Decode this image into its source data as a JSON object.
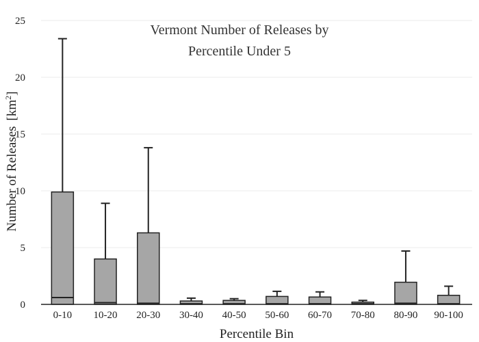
{
  "chart_data": {
    "type": "box",
    "title_lines": [
      "Vermont Number of Releases by",
      "Percentile Under 5"
    ],
    "xlabel": "Percentile Bin",
    "ylabel": "Number of Releases",
    "ylabel_unit": "[km",
    "ylabel_unit_sup": "2",
    "ylabel_unit_close": "]",
    "ylim": [
      0,
      25
    ],
    "yticks": [
      0,
      5,
      10,
      15,
      20,
      25
    ],
    "grid": true,
    "box_color": "#a6a6a6",
    "line_color": "#222222",
    "categories": [
      "0-10",
      "10-20",
      "20-30",
      "30-40",
      "40-50",
      "50-60",
      "60-70",
      "70-80",
      "80-90",
      "90-100"
    ],
    "boxes": [
      {
        "category": "0-10",
        "min": 0,
        "q1": 0,
        "median": 0.6,
        "q3": 9.9,
        "max": 23.4
      },
      {
        "category": "10-20",
        "min": 0,
        "q1": 0,
        "median": 0.15,
        "q3": 4.0,
        "max": 8.9
      },
      {
        "category": "20-30",
        "min": 0,
        "q1": 0,
        "median": 0.1,
        "q3": 6.3,
        "max": 13.8
      },
      {
        "category": "30-40",
        "min": 0,
        "q1": 0,
        "median": 0.05,
        "q3": 0.3,
        "max": 0.55
      },
      {
        "category": "40-50",
        "min": 0,
        "q1": 0,
        "median": 0.05,
        "q3": 0.35,
        "max": 0.5
      },
      {
        "category": "50-60",
        "min": 0,
        "q1": 0,
        "median": 0.05,
        "q3": 0.7,
        "max": 1.15
      },
      {
        "category": "60-70",
        "min": 0,
        "q1": 0,
        "median": 0.05,
        "q3": 0.65,
        "max": 1.1
      },
      {
        "category": "70-80",
        "min": 0,
        "q1": 0,
        "median": 0.05,
        "q3": 0.2,
        "max": 0.35
      },
      {
        "category": "80-90",
        "min": 0,
        "q1": 0,
        "median": 0.1,
        "q3": 1.95,
        "max": 4.7
      },
      {
        "category": "90-100",
        "min": 0,
        "q1": 0,
        "median": 0.05,
        "q3": 0.8,
        "max": 1.6
      }
    ]
  }
}
